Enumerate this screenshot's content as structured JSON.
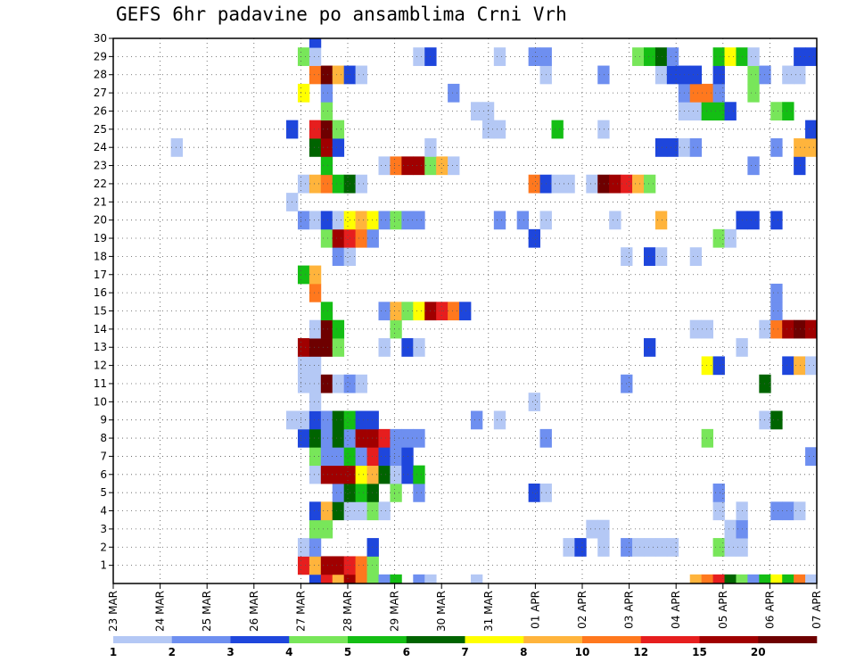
{
  "chart_data": {
    "type": "heatmap",
    "title": "GEFS 6hr padavine po ansamblima Crni Vrh",
    "xlabel": "",
    "ylabel": "",
    "x_labels": [
      "23 MAR",
      "24 MAR",
      "25 MAR",
      "26 MAR",
      "27 MAR",
      "28 MAR",
      "29 MAR",
      "30 MAR",
      "31 MAR",
      "01 APR",
      "02 APR",
      "03 APR",
      "04 APR",
      "05 APR",
      "06 APR",
      "07 APR"
    ],
    "y_labels": [
      1,
      2,
      3,
      4,
      5,
      6,
      7,
      8,
      9,
      10,
      11,
      12,
      13,
      14,
      15,
      16,
      17,
      18,
      19,
      20,
      21,
      22,
      23,
      24,
      25,
      26,
      27,
      28,
      29,
      30
    ],
    "ylim": [
      0,
      30
    ],
    "x_steps": 61,
    "grid": true,
    "legend": {
      "position": "bottom",
      "levels": [
        "1",
        "2",
        "3",
        "4",
        "5",
        "6",
        "7",
        "8",
        "10",
        "12",
        "15",
        "20"
      ],
      "colors": [
        "#b4c8f5",
        "#6e8ff0",
        "#1e46dc",
        "#78e65a",
        "#14be14",
        "#006400",
        "#ffff00",
        "#ffb43c",
        "#ff781e",
        "#e61e1e",
        "#a00000",
        "#6e0000"
      ]
    },
    "cells": [
      [
        0,
        17,
        3
      ],
      [
        0,
        18,
        10
      ],
      [
        0,
        19,
        8
      ],
      [
        0,
        20,
        11
      ],
      [
        0,
        21,
        9
      ],
      [
        0,
        22,
        4
      ],
      [
        0,
        23,
        2
      ],
      [
        0,
        24,
        5
      ],
      [
        0,
        26,
        2
      ],
      [
        0,
        27,
        1
      ],
      [
        0,
        31,
        1
      ],
      [
        0,
        50,
        8
      ],
      [
        0,
        51,
        9
      ],
      [
        0,
        52,
        10
      ],
      [
        0,
        53,
        6
      ],
      [
        0,
        54,
        4
      ],
      [
        0,
        55,
        2
      ],
      [
        0,
        56,
        5
      ],
      [
        0,
        57,
        7
      ],
      [
        0,
        58,
        5
      ],
      [
        0,
        59,
        9
      ],
      [
        0,
        60,
        1
      ],
      [
        1,
        16,
        10
      ],
      [
        1,
        17,
        8
      ],
      [
        1,
        18,
        11
      ],
      [
        1,
        19,
        11
      ],
      [
        1,
        20,
        10
      ],
      [
        1,
        21,
        9
      ],
      [
        1,
        22,
        4
      ],
      [
        2,
        16,
        1
      ],
      [
        2,
        17,
        2
      ],
      [
        2,
        22,
        3
      ],
      [
        2,
        39,
        1
      ],
      [
        2,
        40,
        3
      ],
      [
        2,
        42,
        1
      ],
      [
        2,
        44,
        2
      ],
      [
        2,
        45,
        1
      ],
      [
        2,
        46,
        1
      ],
      [
        2,
        47,
        1
      ],
      [
        2,
        48,
        1
      ],
      [
        2,
        52,
        4
      ],
      [
        2,
        53,
        1
      ],
      [
        2,
        54,
        1
      ],
      [
        3,
        17,
        4
      ],
      [
        3,
        18,
        4
      ],
      [
        3,
        41,
        1
      ],
      [
        3,
        42,
        1
      ],
      [
        3,
        53,
        1
      ],
      [
        3,
        54,
        2
      ],
      [
        4,
        17,
        3
      ],
      [
        4,
        18,
        8
      ],
      [
        4,
        19,
        6
      ],
      [
        4,
        20,
        1
      ],
      [
        4,
        21,
        1
      ],
      [
        4,
        22,
        4
      ],
      [
        4,
        23,
        1
      ],
      [
        4,
        52,
        1
      ],
      [
        4,
        54,
        1
      ],
      [
        4,
        57,
        2
      ],
      [
        4,
        58,
        2
      ],
      [
        4,
        59,
        1
      ],
      [
        5,
        19,
        2
      ],
      [
        5,
        20,
        6
      ],
      [
        5,
        21,
        5
      ],
      [
        5,
        22,
        6
      ],
      [
        5,
        24,
        4
      ],
      [
        5,
        26,
        2
      ],
      [
        5,
        36,
        3
      ],
      [
        5,
        37,
        1
      ],
      [
        5,
        52,
        2
      ],
      [
        6,
        17,
        1
      ],
      [
        6,
        18,
        11
      ],
      [
        6,
        19,
        11
      ],
      [
        6,
        20,
        11
      ],
      [
        6,
        21,
        7
      ],
      [
        6,
        22,
        8
      ],
      [
        6,
        23,
        6
      ],
      [
        6,
        24,
        1
      ],
      [
        6,
        25,
        3
      ],
      [
        6,
        26,
        5
      ],
      [
        7,
        17,
        4
      ],
      [
        7,
        18,
        2
      ],
      [
        7,
        19,
        2
      ],
      [
        7,
        20,
        5
      ],
      [
        7,
        21,
        2
      ],
      [
        7,
        22,
        10
      ],
      [
        7,
        23,
        3
      ],
      [
        7,
        24,
        2
      ],
      [
        7,
        25,
        3
      ],
      [
        7,
        60,
        2
      ],
      [
        8,
        16,
        3
      ],
      [
        8,
        17,
        6
      ],
      [
        8,
        18,
        2
      ],
      [
        8,
        19,
        6
      ],
      [
        8,
        20,
        2
      ],
      [
        8,
        21,
        11
      ],
      [
        8,
        22,
        11
      ],
      [
        8,
        23,
        10
      ],
      [
        8,
        24,
        2
      ],
      [
        8,
        25,
        2
      ],
      [
        8,
        26,
        2
      ],
      [
        8,
        37,
        2
      ],
      [
        8,
        51,
        4
      ],
      [
        9,
        15,
        1
      ],
      [
        9,
        16,
        1
      ],
      [
        9,
        17,
        3
      ],
      [
        9,
        18,
        2
      ],
      [
        9,
        19,
        6
      ],
      [
        9,
        20,
        5
      ],
      [
        9,
        21,
        3
      ],
      [
        9,
        22,
        3
      ],
      [
        9,
        31,
        2
      ],
      [
        9,
        33,
        1
      ],
      [
        9,
        56,
        1
      ],
      [
        9,
        57,
        6
      ],
      [
        10,
        17,
        1
      ],
      [
        10,
        36,
        1
      ],
      [
        11,
        16,
        1
      ],
      [
        11,
        17,
        1
      ],
      [
        11,
        18,
        12
      ],
      [
        11,
        19,
        1
      ],
      [
        11,
        20,
        2
      ],
      [
        11,
        21,
        1
      ],
      [
        11,
        44,
        2
      ],
      [
        11,
        56,
        6
      ],
      [
        12,
        16,
        1
      ],
      [
        12,
        17,
        1
      ],
      [
        12,
        51,
        7
      ],
      [
        12,
        52,
        3
      ],
      [
        12,
        58,
        3
      ],
      [
        12,
        59,
        8
      ],
      [
        12,
        60,
        1
      ],
      [
        13,
        16,
        11
      ],
      [
        13,
        17,
        12
      ],
      [
        13,
        18,
        12
      ],
      [
        13,
        19,
        4
      ],
      [
        13,
        23,
        1
      ],
      [
        13,
        25,
        3
      ],
      [
        13,
        26,
        1
      ],
      [
        13,
        46,
        3
      ],
      [
        13,
        54,
        1
      ],
      [
        14,
        17,
        1
      ],
      [
        14,
        18,
        12
      ],
      [
        14,
        19,
        5
      ],
      [
        14,
        24,
        4
      ],
      [
        14,
        50,
        1
      ],
      [
        14,
        51,
        1
      ],
      [
        14,
        56,
        1
      ],
      [
        14,
        57,
        9
      ],
      [
        14,
        58,
        11
      ],
      [
        14,
        59,
        12
      ],
      [
        14,
        60,
        11
      ],
      [
        15,
        18,
        5
      ],
      [
        15,
        23,
        2
      ],
      [
        15,
        24,
        8
      ],
      [
        15,
        25,
        4
      ],
      [
        15,
        26,
        7
      ],
      [
        15,
        27,
        11
      ],
      [
        15,
        28,
        10
      ],
      [
        15,
        29,
        9
      ],
      [
        15,
        30,
        3
      ],
      [
        15,
        57,
        2
      ],
      [
        16,
        17,
        9
      ],
      [
        16,
        57,
        2
      ],
      [
        17,
        16,
        5
      ],
      [
        17,
        17,
        8
      ],
      [
        18,
        19,
        2
      ],
      [
        18,
        20,
        1
      ],
      [
        18,
        44,
        1
      ],
      [
        18,
        46,
        3
      ],
      [
        18,
        47,
        1
      ],
      [
        18,
        50,
        1
      ],
      [
        19,
        18,
        4
      ],
      [
        19,
        19,
        11
      ],
      [
        19,
        20,
        10
      ],
      [
        19,
        21,
        9
      ],
      [
        19,
        22,
        2
      ],
      [
        19,
        36,
        3
      ],
      [
        19,
        52,
        4
      ],
      [
        19,
        53,
        1
      ],
      [
        20,
        16,
        2
      ],
      [
        20,
        17,
        1
      ],
      [
        20,
        18,
        3
      ],
      [
        20,
        19,
        1
      ],
      [
        20,
        20,
        7
      ],
      [
        20,
        21,
        8
      ],
      [
        20,
        22,
        7
      ],
      [
        20,
        23,
        2
      ],
      [
        20,
        24,
        4
      ],
      [
        20,
        25,
        2
      ],
      [
        20,
        26,
        2
      ],
      [
        20,
        33,
        2
      ],
      [
        20,
        35,
        2
      ],
      [
        20,
        37,
        1
      ],
      [
        20,
        43,
        1
      ],
      [
        20,
        47,
        8
      ],
      [
        20,
        54,
        3
      ],
      [
        20,
        55,
        3
      ],
      [
        20,
        57,
        3
      ],
      [
        21,
        15,
        1
      ],
      [
        22,
        16,
        1
      ],
      [
        22,
        17,
        8
      ],
      [
        22,
        18,
        9
      ],
      [
        22,
        19,
        5
      ],
      [
        22,
        20,
        6
      ],
      [
        22,
        21,
        1
      ],
      [
        22,
        36,
        9
      ],
      [
        22,
        37,
        3
      ],
      [
        22,
        38,
        1
      ],
      [
        22,
        39,
        1
      ],
      [
        22,
        41,
        1
      ],
      [
        22,
        42,
        12
      ],
      [
        22,
        43,
        11
      ],
      [
        22,
        44,
        10
      ],
      [
        22,
        45,
        8
      ],
      [
        22,
        46,
        4
      ],
      [
        23,
        18,
        5
      ],
      [
        23,
        23,
        1
      ],
      [
        23,
        24,
        9
      ],
      [
        23,
        25,
        11
      ],
      [
        23,
        26,
        11
      ],
      [
        23,
        27,
        4
      ],
      [
        23,
        28,
        8
      ],
      [
        23,
        29,
        1
      ],
      [
        23,
        55,
        2
      ],
      [
        23,
        59,
        3
      ],
      [
        24,
        5,
        1
      ],
      [
        24,
        17,
        6
      ],
      [
        24,
        18,
        11
      ],
      [
        24,
        19,
        3
      ],
      [
        24,
        27,
        1
      ],
      [
        24,
        47,
        3
      ],
      [
        24,
        48,
        3
      ],
      [
        24,
        49,
        1
      ],
      [
        24,
        50,
        2
      ],
      [
        24,
        57,
        2
      ],
      [
        24,
        59,
        8
      ],
      [
        24,
        60,
        8
      ],
      [
        25,
        15,
        3
      ],
      [
        25,
        17,
        10
      ],
      [
        25,
        18,
        12
      ],
      [
        25,
        19,
        4
      ],
      [
        25,
        32,
        1
      ],
      [
        25,
        33,
        1
      ],
      [
        25,
        38,
        5
      ],
      [
        25,
        42,
        1
      ],
      [
        25,
        60,
        3
      ],
      [
        26,
        18,
        4
      ],
      [
        26,
        31,
        1
      ],
      [
        26,
        32,
        1
      ],
      [
        26,
        49,
        1
      ],
      [
        26,
        50,
        1
      ],
      [
        26,
        51,
        5
      ],
      [
        26,
        52,
        5
      ],
      [
        26,
        53,
        3
      ],
      [
        26,
        57,
        4
      ],
      [
        26,
        58,
        5
      ],
      [
        27,
        16,
        7
      ],
      [
        27,
        18,
        2
      ],
      [
        27,
        29,
        2
      ],
      [
        27,
        49,
        2
      ],
      [
        27,
        50,
        9
      ],
      [
        27,
        51,
        9
      ],
      [
        27,
        52,
        2
      ],
      [
        27,
        55,
        4
      ],
      [
        28,
        17,
        9
      ],
      [
        28,
        18,
        12
      ],
      [
        28,
        19,
        8
      ],
      [
        28,
        20,
        3
      ],
      [
        28,
        21,
        1
      ],
      [
        28,
        37,
        1
      ],
      [
        28,
        42,
        2
      ],
      [
        28,
        47,
        1
      ],
      [
        28,
        48,
        3
      ],
      [
        28,
        49,
        3
      ],
      [
        28,
        50,
        3
      ],
      [
        28,
        52,
        3
      ],
      [
        28,
        55,
        4
      ],
      [
        28,
        56,
        2
      ],
      [
        28,
        58,
        1
      ],
      [
        28,
        59,
        1
      ],
      [
        29,
        16,
        4
      ],
      [
        29,
        17,
        1
      ],
      [
        29,
        26,
        1
      ],
      [
        29,
        27,
        3
      ],
      [
        29,
        33,
        1
      ],
      [
        29,
        36,
        2
      ],
      [
        29,
        37,
        2
      ],
      [
        29,
        45,
        4
      ],
      [
        29,
        46,
        5
      ],
      [
        29,
        47,
        6
      ],
      [
        29,
        48,
        2
      ],
      [
        29,
        52,
        5
      ],
      [
        29,
        53,
        7
      ],
      [
        29,
        54,
        5
      ],
      [
        29,
        55,
        1
      ],
      [
        29,
        59,
        3
      ],
      [
        29,
        60,
        3
      ],
      [
        30,
        17,
        3
      ]
    ]
  }
}
